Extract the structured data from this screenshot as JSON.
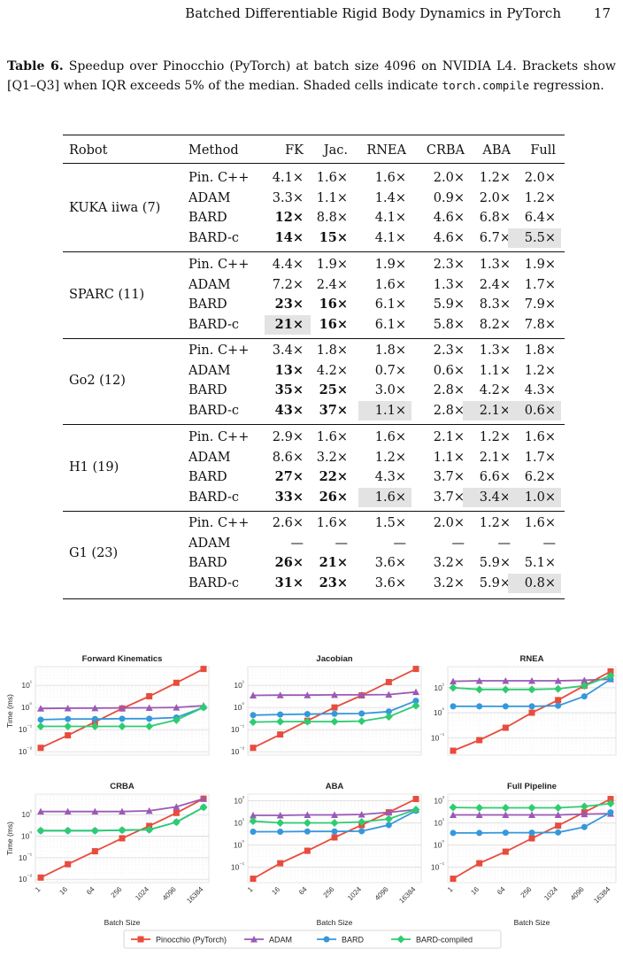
{
  "header": {
    "title": "Batched Differentiable Rigid Body Dynamics in PyTorch",
    "page": "17"
  },
  "caption": {
    "label": "Table 6.",
    "text1": "Speedup over Pinocchio (PyTorch) at batch size 4096 on NVIDIA L4.",
    "text2": "Brackets show [Q1–Q3] when IQR exceeds 5% of the median. Shaded cells indicate",
    "code": "torch.compile",
    "text3": "regression."
  },
  "table": {
    "columns": [
      "Robot",
      "Method",
      "FK",
      "Jac.",
      "RNEA",
      "CRBA",
      "ABA",
      "Full"
    ],
    "groups": [
      {
        "robot": "KUKA iiwa (7)",
        "rows": [
          {
            "method": "Pin. C++",
            "cells": [
              "4.1×",
              "1.6×",
              "1.6×",
              "2.0×",
              "1.2×",
              "2.0×"
            ],
            "bold": [],
            "shaded": []
          },
          {
            "method": "ADAM",
            "cells": [
              "3.3×",
              "1.1×",
              "1.4×",
              "0.9×",
              "2.0×",
              "1.2×"
            ],
            "bold": [],
            "shaded": []
          },
          {
            "method": "BARD",
            "cells": [
              "12×",
              "8.8×",
              "4.1×",
              "4.6×",
              "6.8×",
              "6.4×"
            ],
            "bold": [
              0
            ],
            "shaded": []
          },
          {
            "method": "BARD-c",
            "cells": [
              "14×",
              "15×",
              "4.1×",
              "4.6×",
              "6.7×",
              "5.5×"
            ],
            "bold": [
              0,
              1
            ],
            "shaded": [
              5
            ]
          }
        ]
      },
      {
        "robot": "SPARC (11)",
        "rows": [
          {
            "method": "Pin. C++",
            "cells": [
              "4.4×",
              "1.9×",
              "1.9×",
              "2.3×",
              "1.3×",
              "1.9×"
            ],
            "bold": [],
            "shaded": []
          },
          {
            "method": "ADAM",
            "cells": [
              "7.2×",
              "2.4×",
              "1.6×",
              "1.3×",
              "2.4×",
              "1.7×"
            ],
            "bold": [],
            "shaded": []
          },
          {
            "method": "BARD",
            "cells": [
              "23×",
              "16×",
              "6.1×",
              "5.9×",
              "8.3×",
              "7.9×"
            ],
            "bold": [
              0,
              1
            ],
            "shaded": []
          },
          {
            "method": "BARD-c",
            "cells": [
              "21×",
              "16×",
              "6.1×",
              "5.8×",
              "8.2×",
              "7.8×"
            ],
            "bold": [
              0,
              1
            ],
            "shaded": [
              0
            ]
          }
        ]
      },
      {
        "robot": "Go2 (12)",
        "rows": [
          {
            "method": "Pin. C++",
            "cells": [
              "3.4×",
              "1.8×",
              "1.8×",
              "2.3×",
              "1.3×",
              "1.8×"
            ],
            "bold": [],
            "shaded": []
          },
          {
            "method": "ADAM",
            "cells": [
              "13×",
              "4.2×",
              "0.7×",
              "0.6×",
              "1.1×",
              "1.2×"
            ],
            "bold": [
              0
            ],
            "shaded": []
          },
          {
            "method": "BARD",
            "cells": [
              "35×",
              "25×",
              "3.0×",
              "2.8×",
              "4.2×",
              "4.3×"
            ],
            "bold": [
              0,
              1
            ],
            "shaded": []
          },
          {
            "method": "BARD-c",
            "cells": [
              "43×",
              "37×",
              "1.1×",
              "2.8×",
              "2.1×",
              "0.6×"
            ],
            "bold": [
              0,
              1
            ],
            "shaded": [
              2,
              4,
              5
            ]
          }
        ]
      },
      {
        "robot": "H1 (19)",
        "rows": [
          {
            "method": "Pin. C++",
            "cells": [
              "2.9×",
              "1.6×",
              "1.6×",
              "2.1×",
              "1.2×",
              "1.6×"
            ],
            "bold": [],
            "shaded": []
          },
          {
            "method": "ADAM",
            "cells": [
              "8.6×",
              "3.2×",
              "1.2×",
              "1.1×",
              "2.1×",
              "1.7×"
            ],
            "bold": [],
            "shaded": []
          },
          {
            "method": "BARD",
            "cells": [
              "27×",
              "22×",
              "4.3×",
              "3.7×",
              "6.6×",
              "6.2×"
            ],
            "bold": [
              0,
              1
            ],
            "shaded": []
          },
          {
            "method": "BARD-c",
            "cells": [
              "33×",
              "26×",
              "1.6×",
              "3.7×",
              "3.4×",
              "1.0×"
            ],
            "bold": [
              0,
              1
            ],
            "shaded": [
              2,
              4,
              5
            ]
          }
        ]
      },
      {
        "robot": "G1 (23)",
        "rows": [
          {
            "method": "Pin. C++",
            "cells": [
              "2.6×",
              "1.6×",
              "1.5×",
              "2.0×",
              "1.2×",
              "1.6×"
            ],
            "bold": [],
            "shaded": []
          },
          {
            "method": "ADAM",
            "cells": [
              "—",
              "—",
              "—",
              "—",
              "—",
              "—"
            ],
            "bold": [],
            "shaded": []
          },
          {
            "method": "BARD",
            "cells": [
              "26×",
              "21×",
              "3.6×",
              "3.2×",
              "5.9×",
              "5.1×"
            ],
            "bold": [
              0,
              1
            ],
            "shaded": []
          },
          {
            "method": "BARD-c",
            "cells": [
              "31×",
              "23×",
              "3.6×",
              "3.2×",
              "5.9×",
              "0.8×"
            ],
            "bold": [
              0,
              1
            ],
            "shaded": [
              5
            ]
          }
        ]
      }
    ]
  },
  "chart_data": [
    {
      "type": "line",
      "title": "Forward Kinematics",
      "ylabel": "Time (ms)",
      "xlabel": "",
      "y_scale": "log",
      "ylim": [
        0.007,
        70
      ],
      "x": [
        1,
        16,
        64,
        256,
        1024,
        4096,
        16384
      ],
      "series": [
        {
          "name": "Pinocchio (PyTorch)",
          "values": [
            0.015,
            0.055,
            0.22,
            0.9,
            3.2,
            13,
            55
          ]
        },
        {
          "name": "ADAM",
          "values": [
            0.9,
            0.92,
            0.93,
            0.95,
            0.97,
            1.0,
            1.2
          ]
        },
        {
          "name": "BARD",
          "values": [
            0.28,
            0.3,
            0.3,
            0.31,
            0.31,
            0.35,
            1.0
          ]
        },
        {
          "name": "BARD-compiled",
          "values": [
            0.14,
            0.14,
            0.14,
            0.14,
            0.14,
            0.27,
            1.0
          ]
        }
      ]
    },
    {
      "type": "line",
      "title": "Jacobian",
      "ylabel": "",
      "xlabel": "",
      "y_scale": "log",
      "ylim": [
        0.007,
        70
      ],
      "x": [
        1,
        16,
        64,
        256,
        1024,
        4096,
        16384
      ],
      "series": [
        {
          "name": "Pinocchio (PyTorch)",
          "values": [
            0.015,
            0.06,
            0.25,
            1.0,
            3.5,
            14,
            55
          ]
        },
        {
          "name": "ADAM",
          "values": [
            3.5,
            3.6,
            3.6,
            3.7,
            3.7,
            3.8,
            5.0
          ]
        },
        {
          "name": "BARD",
          "values": [
            0.45,
            0.48,
            0.5,
            0.52,
            0.53,
            0.65,
            2.0
          ]
        },
        {
          "name": "BARD-compiled",
          "values": [
            0.22,
            0.23,
            0.23,
            0.23,
            0.24,
            0.38,
            1.2
          ]
        }
      ]
    },
    {
      "type": "line",
      "title": "RNEA",
      "ylabel": "",
      "xlabel": "",
      "y_scale": "log",
      "ylim": [
        0.02,
        70
      ],
      "x": [
        1,
        16,
        64,
        256,
        1024,
        4096,
        16384
      ],
      "series": [
        {
          "name": "Pinocchio (PyTorch)",
          "values": [
            0.03,
            0.08,
            0.25,
            1.0,
            3.2,
            12,
            45
          ]
        },
        {
          "name": "ADAM",
          "values": [
            18,
            19,
            19,
            19,
            19,
            20,
            22
          ]
        },
        {
          "name": "BARD",
          "values": [
            1.8,
            1.8,
            1.8,
            1.8,
            1.9,
            4.5,
            22
          ]
        },
        {
          "name": "BARD-compiled",
          "values": [
            10,
            8.5,
            8.5,
            8.5,
            9,
            12,
            30
          ]
        }
      ]
    },
    {
      "type": "line",
      "title": "CRBA",
      "ylabel": "Time (ms)",
      "xlabel": "Batch Size",
      "y_scale": "log",
      "ylim": [
        0.007,
        90
      ],
      "x": [
        1,
        16,
        64,
        256,
        1024,
        4096,
        16384
      ],
      "series": [
        {
          "name": "Pinocchio (PyTorch)",
          "values": [
            0.012,
            0.05,
            0.2,
            0.8,
            3.0,
            12,
            55
          ]
        },
        {
          "name": "ADAM",
          "values": [
            14,
            14,
            14,
            14,
            15,
            23,
            55
          ]
        },
        {
          "name": "BARD",
          "values": [
            1.8,
            1.8,
            1.8,
            1.9,
            2.0,
            4.5,
            22
          ]
        },
        {
          "name": "BARD-compiled",
          "values": [
            1.8,
            1.8,
            1.8,
            1.9,
            2.0,
            4.5,
            22
          ]
        }
      ]
    },
    {
      "type": "line",
      "title": "ABA",
      "ylabel": "",
      "xlabel": "Batch Size",
      "y_scale": "log",
      "ylim": [
        0.02,
        200
      ],
      "x": [
        1,
        16,
        64,
        256,
        1024,
        4096,
        16384
      ],
      "series": [
        {
          "name": "Pinocchio (PyTorch)",
          "values": [
            0.03,
            0.15,
            0.55,
            2.2,
            8,
            30,
            120
          ]
        },
        {
          "name": "ADAM",
          "values": [
            22,
            22,
            23,
            23,
            24,
            30,
            40
          ]
        },
        {
          "name": "BARD",
          "values": [
            4,
            4,
            4.1,
            4.1,
            4.2,
            8,
            35
          ]
        },
        {
          "name": "BARD-compiled",
          "values": [
            12,
            10,
            10,
            10,
            11,
            15,
            40
          ]
        }
      ]
    },
    {
      "type": "line",
      "title": "Full Pipeline",
      "ylabel": "",
      "xlabel": "Batch Size",
      "y_scale": "log",
      "ylim": [
        0.02,
        200
      ],
      "x": [
        1,
        16,
        64,
        256,
        1024,
        4096,
        16384
      ],
      "series": [
        {
          "name": "Pinocchio (PyTorch)",
          "values": [
            0.03,
            0.15,
            0.5,
            2.0,
            7.5,
            30,
            120
          ]
        },
        {
          "name": "ADAM",
          "values": [
            23,
            23,
            23,
            23,
            23,
            25,
            26
          ]
        },
        {
          "name": "BARD",
          "values": [
            3.5,
            3.5,
            3.6,
            3.6,
            3.7,
            6.5,
            30
          ]
        },
        {
          "name": "BARD-compiled",
          "values": [
            50,
            48,
            48,
            48,
            48,
            55,
            75
          ]
        }
      ]
    }
  ],
  "axis": {
    "x_ticks": [
      "1",
      "16",
      "64",
      "256",
      "1024",
      "4096",
      "16384"
    ]
  },
  "legend": {
    "entries": [
      "Pinocchio (PyTorch)",
      "ADAM",
      "BARD",
      "BARD-compiled"
    ],
    "placement": "bottom-center"
  },
  "colors": {
    "Pinocchio (PyTorch)": "#e74c3c",
    "ADAM": "#9b59b6",
    "BARD": "#3498db",
    "BARD-compiled": "#2ecc71",
    "shade": "#e3e3e3"
  }
}
